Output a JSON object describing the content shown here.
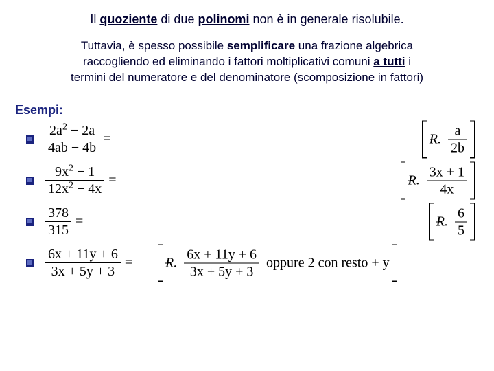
{
  "colors": {
    "text_primary": "#000030",
    "box_border": "#0d1b5c",
    "esempi": "#1a237e",
    "bullet_dark": "#1a237e",
    "bullet_light": "#5c6bc0",
    "math": "#000000",
    "background": "#ffffff"
  },
  "title": {
    "parts": [
      {
        "t": "Il ",
        "style": ""
      },
      {
        "t": "quoziente",
        "style": "bu"
      },
      {
        "t": " di due ",
        "style": ""
      },
      {
        "t": "polinomi",
        "style": "bu"
      },
      {
        "t": " non è in generale risolubile.",
        "style": ""
      }
    ]
  },
  "box": {
    "line1_pre": "Tuttavia, è spesso possibile ",
    "line1_bold": "semplificare",
    "line1_post": " una frazione algebrica",
    "line2_pre": "raccogliendo ed eliminando i fattori moltiplicativi comuni ",
    "line2_bu": "a tutti",
    "line2_post": " i",
    "line3_u": "termini del numeratore e del denominatore",
    "line3_post": " (scomposizione in fattori)"
  },
  "esempi_label": "Esempi:",
  "examples": [
    {
      "lhs_num": "2a² − 2a",
      "lhs_den": "4ab − 4b",
      "ans_num": "a",
      "ans_den": "2b",
      "ans_extra": ""
    },
    {
      "lhs_num": "9x² − 1",
      "lhs_den": "12x² − 4x",
      "ans_num": "3x + 1",
      "ans_den": "4x",
      "ans_extra": ""
    },
    {
      "lhs_num": "378",
      "lhs_den": "315",
      "ans_num": "6",
      "ans_den": "5",
      "ans_extra": ""
    },
    {
      "lhs_num": "6x + 11y + 6",
      "lhs_den": "3x + 5y + 3",
      "ans_num": "6x + 11y + 6",
      "ans_den": "3x + 5y + 3",
      "ans_extra": "oppure  2 con resto + y"
    }
  ],
  "r_label": "R."
}
